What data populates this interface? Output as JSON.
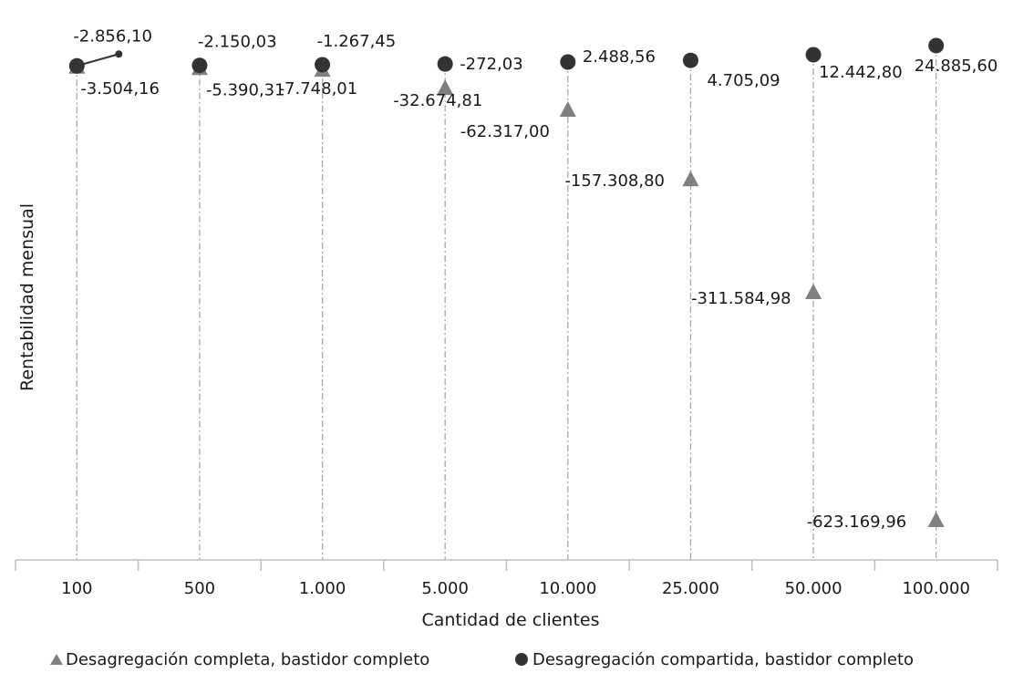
{
  "chart_data": {
    "type": "scatter",
    "categories": [
      "100",
      "500",
      "1.000",
      "5.000",
      "10.000",
      "25.000",
      "50.000",
      "100.000"
    ],
    "xlabel": "Cantidad de clientes",
    "ylabel": "Rentabilidad mensual",
    "ylim": [
      -650000,
      30000
    ],
    "grid": false,
    "drop_lines": true,
    "legend_position": "bottom",
    "series": [
      {
        "name": "Desagregación completa, bastidor completo",
        "marker": "triangle",
        "color": "#808080",
        "values": [
          -3504.16,
          -5390.31,
          -7748.01,
          -32674.81,
          -62317.0,
          -157308.8,
          -311584.98,
          -623169.96
        ],
        "labels": [
          "-3.504,16",
          "-5.390,31",
          "-7.748,01",
          "-32.674,81",
          "-62.317,00",
          "-157.308,80",
          "-311.584,98",
          "-623.169,96"
        ]
      },
      {
        "name": "Desagregación compartida, bastidor completo",
        "marker": "circle",
        "color": "#333333",
        "values": [
          -2856.1,
          -2150.03,
          -1267.45,
          -272.03,
          2488.56,
          4705.09,
          12442.8,
          24885.6
        ],
        "labels": [
          "-2.856,10",
          "-2.150,03",
          "-1.267,45",
          "-272,03",
          "2.488,56",
          "4.705,09",
          "12.442,80",
          "24.885,60"
        ]
      }
    ]
  }
}
